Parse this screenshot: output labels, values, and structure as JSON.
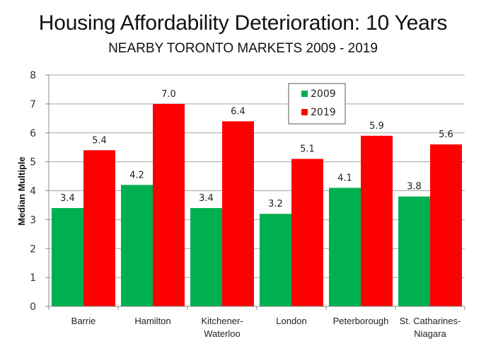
{
  "chart_data": {
    "type": "bar",
    "title": "Housing Affordability Deterioration: 10 Years",
    "subtitle": "NEARBY TORONTO MARKETS 2009 - 2019",
    "xlabel": "",
    "ylabel": "Median Multiple",
    "ylim": [
      0,
      8
    ],
    "yticks": [
      0,
      1,
      2,
      3,
      4,
      5,
      6,
      7,
      8
    ],
    "grid": true,
    "legend_position": "top-center",
    "categories": [
      [
        "Barrie"
      ],
      [
        "Hamilton"
      ],
      [
        "Kitchener-",
        "Waterloo"
      ],
      [
        "London"
      ],
      [
        "Peterborough"
      ],
      [
        "St. Catharines-",
        "Niagara"
      ]
    ],
    "series": [
      {
        "name": "2009",
        "color": "#00b050",
        "values": [
          3.4,
          4.2,
          3.4,
          3.2,
          4.1,
          3.8
        ],
        "labels": [
          "3.4",
          "4.2",
          "3.4",
          "3.2",
          "4.1",
          "3.8"
        ]
      },
      {
        "name": "2019",
        "color": "#ff0000",
        "values": [
          5.4,
          7.0,
          6.4,
          5.1,
          5.9,
          5.6
        ],
        "labels": [
          "5.4",
          "7.0",
          "6.4",
          "5.1",
          "5.9",
          "5.6"
        ]
      }
    ]
  }
}
